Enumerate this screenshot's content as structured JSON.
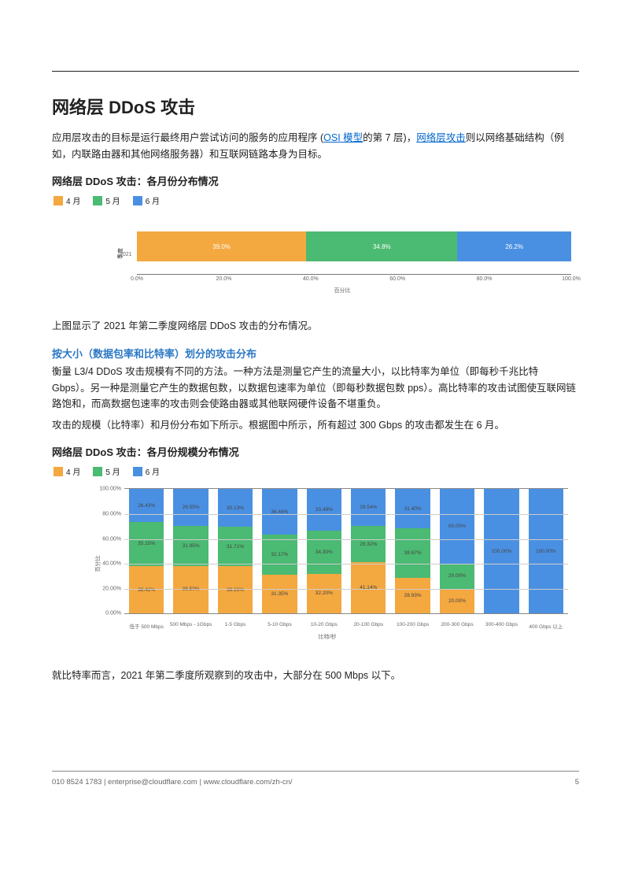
{
  "colors": {
    "orange": "#f4a840",
    "green": "#4bba72",
    "blue": "#4a90e2",
    "link": "#0066cc"
  },
  "header": {
    "title": "网络层 DDoS 攻击"
  },
  "intro": {
    "pre": "应用层攻击的目标是运行最终用户尝试访问的服务的应用程序 (",
    "link1": "OSI 模型",
    "mid": "的第 7 层)，",
    "link2": "网络层攻击",
    "post": "则以网络基础结构（例如，内联路由器和其他网络服务器）和互联网链路本身为目标。"
  },
  "chart1": {
    "title": "网络层 DDoS 攻击：各月份分布情况",
    "legend": [
      "4 月",
      "5 月",
      "6 月"
    ],
    "ylabel_cat": "季度",
    "ylabel": "2021",
    "xlabel": "百分比",
    "xticks": [
      "0.0%",
      "20.0%",
      "40.0%",
      "60.0%",
      "80.0%",
      "100.0%"
    ],
    "segments": [
      {
        "value": 39.0,
        "label": "39.0%",
        "color": "#f4a840"
      },
      {
        "value": 34.8,
        "label": "34.8%",
        "color": "#4bba72"
      },
      {
        "value": 26.2,
        "label": "26.2%",
        "color": "#4a90e2"
      }
    ]
  },
  "after_chart1": "上图显示了 2021 年第二季度网络层 DDoS 攻击的分布情况。",
  "section2": {
    "title": "按大小（数据包率和比特率）划分的攻击分布",
    "p1": "衡量 L3/4 DDoS 攻击规模有不同的方法。一种方法是测量它产生的流量大小，以比特率为单位（即每秒千兆比特 Gbps）。另一种是测量它产生的数据包数，以数据包速率为单位（即每秒数据包数 pps）。高比特率的攻击试图使互联网链路饱和，而高数据包速率的攻击则会使路由器或其他联网硬件设备不堪重负。",
    "p2": "攻击的规模（比特率）和月份分布如下所示。根据图中所示，所有超过 300 Gbps 的攻击都发生在 6 月。"
  },
  "chart2": {
    "title": "网络层 DDoS 攻击：各月份规模分布情况",
    "legend": [
      "4 月",
      "5 月",
      "6 月"
    ],
    "ylabel": "百分比",
    "xlabel": "比特/秒",
    "yticks": [
      "0.00%",
      "20.00%",
      "40.00%",
      "60.00%",
      "80.00%",
      "100.00%"
    ],
    "categories": [
      "低于 500 Mbps",
      "500 Mbps - 1Gbps",
      "1-5 Gbps",
      "5-10 Gbps",
      "10-20 Gbps",
      "20-100 Gbps",
      "100-200 Gbps",
      "200-300 Gbps",
      "300-400 Gbps",
      "400 Gbps 以上"
    ],
    "stacks": [
      {
        "orange": 38.42,
        "green": 35.15,
        "blue": 26.43,
        "labels": [
          "38.42%",
          "35.15%",
          "26.43%"
        ]
      },
      {
        "orange": 38.5,
        "green": 31.95,
        "blue": 29.55,
        "labels": [
          "38.50%",
          "31.95%",
          "29.55%"
        ]
      },
      {
        "orange": 38.16,
        "green": 31.71,
        "blue": 30.13,
        "labels": [
          "38.16%",
          "31.71%",
          "30.13%"
        ]
      },
      {
        "orange": 31.35,
        "green": 32.17,
        "blue": 36.48,
        "labels": [
          "31.35%",
          "32.17%",
          "36.48%"
        ]
      },
      {
        "orange": 32.2,
        "green": 34.3,
        "blue": 33.49,
        "labels": [
          "32.20%",
          "34.30%",
          "33.49%"
        ]
      },
      {
        "orange": 41.14,
        "green": 29.32,
        "blue": 29.54,
        "labels": [
          "41.14%",
          "29.32%",
          "29.54%"
        ]
      },
      {
        "orange": 28.93,
        "green": 39.67,
        "blue": 31.4,
        "labels": [
          "28.93%",
          "39.67%",
          "31.40%"
        ]
      },
      {
        "orange": 20.0,
        "green": 20.0,
        "blue": 60.0,
        "labels": [
          "20.00%",
          "20.00%",
          "60.00%"
        ]
      },
      {
        "orange": 0,
        "green": 0,
        "blue": 100.0,
        "labels": [
          "",
          "",
          "100.00%"
        ]
      },
      {
        "orange": 0,
        "green": 0,
        "blue": 100.0,
        "labels": [
          "",
          "",
          "100.00%"
        ]
      }
    ]
  },
  "after_chart2": "就比特率而言，2021 年第二季度所观察到的攻击中，大部分在 500 Mbps 以下。",
  "footer": {
    "phone": "010 8524 1783",
    "sep": " | ",
    "email": "enterprise@cloudflare.com",
    "url": "www.cloudflare.com/zh-cn/",
    "page": "5"
  }
}
